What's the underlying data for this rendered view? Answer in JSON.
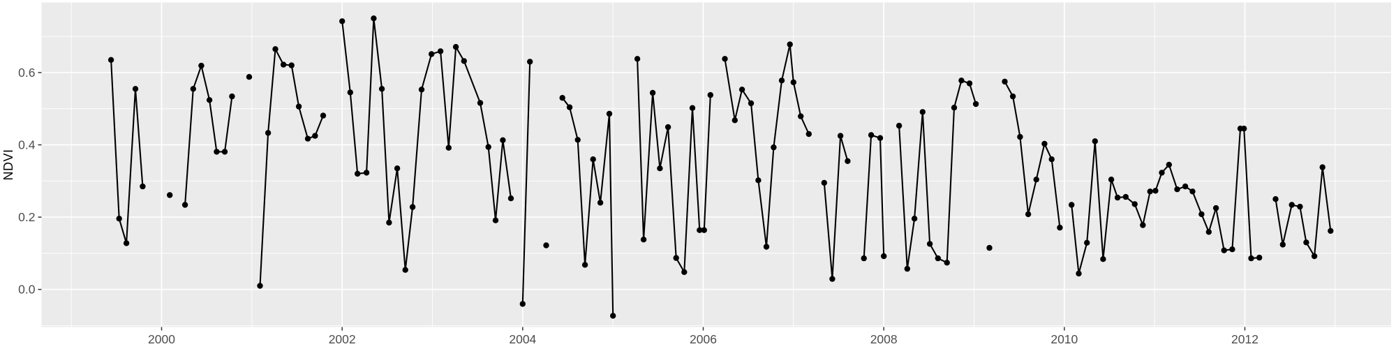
{
  "chart_data": {
    "type": "line",
    "title": "",
    "xlabel": "",
    "ylabel": "NDVI",
    "legend_position": "none",
    "grid": true,
    "background": "ggplot-gray",
    "xlim": [
      1998.67,
      2013.62
    ],
    "ylim": [
      -0.104,
      0.794
    ],
    "x_tick_labels": [
      "2000",
      "2002",
      "2004",
      "2006",
      "2008",
      "2010",
      "2012"
    ],
    "x_tick_values": [
      2000,
      2002,
      2004,
      2006,
      2008,
      2010,
      2012
    ],
    "x_minor_values": [
      1999,
      2001,
      2003,
      2005,
      2007,
      2009,
      2011,
      2013
    ],
    "y_tick_labels": [
      "0.0",
      "0.2",
      "0.4",
      "0.6"
    ],
    "y_tick_values": [
      0.0,
      0.2,
      0.4,
      0.6
    ],
    "y_minor_values": [
      -0.1,
      0.1,
      0.3,
      0.5,
      0.7
    ],
    "series": [
      {
        "name": "NDVI",
        "mode": "line+points",
        "segments": [
          [
            [
              1999.44,
              0.635
            ],
            [
              1999.53,
              0.196
            ],
            [
              1999.61,
              0.128
            ],
            [
              1999.71,
              0.555
            ],
            [
              1999.79,
              0.285
            ]
          ],
          [
            [
              2000.09,
              0.261
            ]
          ],
          [
            [
              2000.26,
              0.234
            ],
            [
              2000.35,
              0.555
            ],
            [
              2000.44,
              0.619
            ],
            [
              2000.53,
              0.524
            ],
            [
              2000.61,
              0.381
            ],
            [
              2000.7,
              0.381
            ],
            [
              2000.78,
              0.534
            ]
          ],
          [
            [
              2000.97,
              0.588
            ]
          ],
          [
            [
              2001.09,
              0.01
            ],
            [
              2001.18,
              0.433
            ],
            [
              2001.26,
              0.665
            ],
            [
              2001.35,
              0.622
            ],
            [
              2001.44,
              0.62
            ],
            [
              2001.52,
              0.506
            ],
            [
              2001.62,
              0.417
            ],
            [
              2001.7,
              0.425
            ],
            [
              2001.79,
              0.481
            ]
          ],
          [
            [
              2002.0,
              0.742
            ],
            [
              2002.09,
              0.545
            ],
            [
              2002.17,
              0.32
            ],
            [
              2002.27,
              0.323
            ],
            [
              2002.35,
              0.75
            ],
            [
              2002.44,
              0.555
            ],
            [
              2002.52,
              0.185
            ],
            [
              2002.61,
              0.335
            ],
            [
              2002.7,
              0.054
            ],
            [
              2002.78,
              0.228
            ],
            [
              2002.88,
              0.553
            ],
            [
              2002.99,
              0.651
            ],
            [
              2003.09,
              0.659
            ],
            [
              2003.18,
              0.392
            ],
            [
              2003.26,
              0.671
            ],
            [
              2003.35,
              0.632
            ],
            [
              2003.53,
              0.516
            ],
            [
              2003.62,
              0.394
            ],
            [
              2003.7,
              0.191
            ],
            [
              2003.78,
              0.413
            ],
            [
              2003.87,
              0.252
            ]
          ],
          [
            [
              2004.0,
              -0.04
            ],
            [
              2004.08,
              0.63
            ]
          ],
          [
            [
              2004.26,
              0.122
            ]
          ],
          [
            [
              2004.44,
              0.53
            ],
            [
              2004.52,
              0.504
            ],
            [
              2004.61,
              0.414
            ],
            [
              2004.69,
              0.068
            ],
            [
              2004.78,
              0.36
            ],
            [
              2004.86,
              0.24
            ],
            [
              2004.96,
              0.486
            ],
            [
              2005.0,
              -0.073
            ]
          ],
          [
            [
              2005.27,
              0.638
            ],
            [
              2005.34,
              0.138
            ],
            [
              2005.44,
              0.544
            ],
            [
              2005.52,
              0.335
            ],
            [
              2005.61,
              0.449
            ],
            [
              2005.7,
              0.087
            ],
            [
              2005.79,
              0.048
            ],
            [
              2005.88,
              0.502
            ],
            [
              2005.96,
              0.164
            ],
            [
              2006.01,
              0.164
            ],
            [
              2006.08,
              0.538
            ]
          ],
          [
            [
              2006.24,
              0.638
            ],
            [
              2006.35,
              0.468
            ],
            [
              2006.43,
              0.553
            ],
            [
              2006.53,
              0.515
            ],
            [
              2006.61,
              0.302
            ],
            [
              2006.7,
              0.118
            ],
            [
              2006.78,
              0.393
            ],
            [
              2006.87,
              0.578
            ],
            [
              2006.96,
              0.678
            ],
            [
              2007.0,
              0.573
            ],
            [
              2007.08,
              0.479
            ],
            [
              2007.17,
              0.43
            ]
          ],
          [
            [
              2007.34,
              0.295
            ],
            [
              2007.43,
              0.029
            ],
            [
              2007.52,
              0.425
            ],
            [
              2007.6,
              0.355
            ]
          ],
          [
            [
              2007.78,
              0.086
            ],
            [
              2007.86,
              0.427
            ],
            [
              2007.96,
              0.419
            ],
            [
              2008.0,
              0.092
            ]
          ],
          [
            [
              2008.17,
              0.453
            ],
            [
              2008.26,
              0.057
            ],
            [
              2008.34,
              0.196
            ],
            [
              2008.43,
              0.491
            ],
            [
              2008.51,
              0.126
            ],
            [
              2008.6,
              0.086
            ],
            [
              2008.7,
              0.074
            ],
            [
              2008.78,
              0.503
            ],
            [
              2008.86,
              0.578
            ],
            [
              2008.95,
              0.57
            ],
            [
              2009.02,
              0.513
            ]
          ],
          [
            [
              2009.17,
              0.115
            ]
          ],
          [
            [
              2009.34,
              0.575
            ],
            [
              2009.43,
              0.534
            ],
            [
              2009.51,
              0.422
            ],
            [
              2009.6,
              0.208
            ],
            [
              2009.69,
              0.304
            ],
            [
              2009.78,
              0.403
            ],
            [
              2009.86,
              0.36
            ],
            [
              2009.95,
              0.171
            ]
          ],
          [
            [
              2010.08,
              0.234
            ],
            [
              2010.16,
              0.044
            ],
            [
              2010.25,
              0.129
            ],
            [
              2010.34,
              0.41
            ],
            [
              2010.43,
              0.084
            ],
            [
              2010.52,
              0.304
            ],
            [
              2010.59,
              0.254
            ],
            [
              2010.68,
              0.256
            ],
            [
              2010.78,
              0.236
            ],
            [
              2010.87,
              0.178
            ],
            [
              2010.95,
              0.271
            ],
            [
              2011.01,
              0.273
            ],
            [
              2011.08,
              0.323
            ],
            [
              2011.16,
              0.345
            ],
            [
              2011.25,
              0.277
            ],
            [
              2011.34,
              0.285
            ],
            [
              2011.42,
              0.271
            ],
            [
              2011.52,
              0.208
            ],
            [
              2011.6,
              0.159
            ],
            [
              2011.68,
              0.225
            ],
            [
              2011.77,
              0.108
            ],
            [
              2011.86,
              0.111
            ],
            [
              2011.95,
              0.445
            ],
            [
              2011.99,
              0.445
            ],
            [
              2012.07,
              0.086
            ],
            [
              2012.16,
              0.088
            ]
          ],
          [
            [
              2012.34,
              0.25
            ],
            [
              2012.42,
              0.124
            ],
            [
              2012.52,
              0.234
            ],
            [
              2012.61,
              0.229
            ],
            [
              2012.68,
              0.13
            ],
            [
              2012.77,
              0.092
            ],
            [
              2012.86,
              0.338
            ],
            [
              2012.95,
              0.162
            ]
          ]
        ]
      }
    ]
  },
  "style": {
    "panel_bg": "#EBEBEB",
    "grid_color": "#FFFFFF",
    "line_color": "#000000",
    "point_color": "#000000",
    "tick_mark_color": "#333333",
    "tick_label_color": "#4D4D4D",
    "axis_title_color": "#000000"
  }
}
